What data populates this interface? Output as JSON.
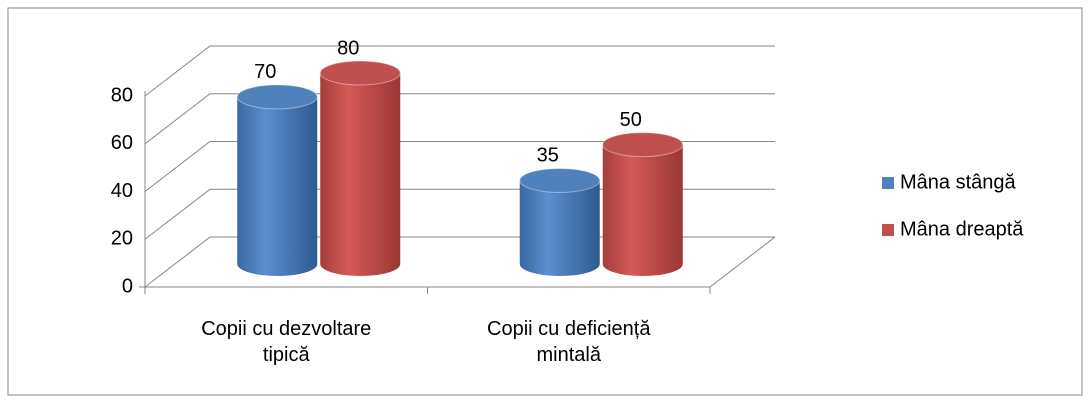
{
  "chart_data": {
    "type": "bar3d",
    "categories": [
      "Copii cu dezvoltare tipică",
      "Copii cu deficiență mintală"
    ],
    "series": [
      {
        "name": "Mâna stângă",
        "color": "#4f81bd",
        "values": [
          70,
          35
        ]
      },
      {
        "name": "Mâna dreaptă",
        "color": "#c0504d",
        "values": [
          80,
          50
        ]
      }
    ],
    "ylim": [
      0,
      80
    ],
    "yticks": [
      0,
      20,
      40,
      60,
      80
    ],
    "grid": true,
    "legend": "right"
  }
}
